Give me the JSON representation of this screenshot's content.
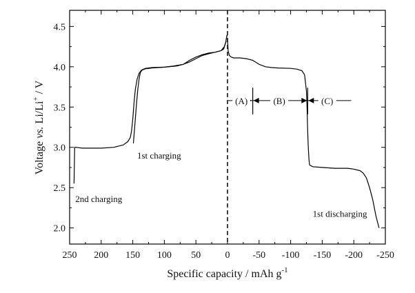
{
  "chart_data": {
    "type": "line",
    "title": "",
    "xlabel": "Specific capacity / mAh g",
    "xlabel_sup": "-1",
    "ylabel_parts": {
      "pre": "Voltage ",
      "vs": "vs.",
      "mid": " Li/Li",
      "sup": "+",
      "post": " / V"
    },
    "xlim": [
      250,
      -250
    ],
    "ylim": [
      1.8,
      4.7
    ],
    "x_ticks": [
      250,
      200,
      150,
      100,
      50,
      0,
      -50,
      -100,
      -150,
      -200,
      -250
    ],
    "x_tick_labels": [
      "250",
      "200",
      "150",
      "100",
      "50",
      "0",
      "-50",
      "-100",
      "-150",
      "-200",
      "-250"
    ],
    "y_ticks": [
      2.0,
      2.5,
      3.0,
      3.5,
      4.0,
      4.5
    ],
    "y_tick_labels": [
      "2.0",
      "2.5",
      "3.0",
      "3.5",
      "4.0",
      "4.5"
    ],
    "grid": false,
    "legend": "none",
    "reference_line_x": 0,
    "series": [
      {
        "name": "1st charging",
        "color": "#000000",
        "x": [
          149,
          148,
          146,
          144,
          142,
          140,
          138,
          135,
          130,
          120,
          100,
          85,
          70,
          60,
          50,
          40,
          30,
          20,
          10,
          6,
          3,
          1,
          0
        ],
        "y": [
          3.05,
          3.15,
          3.35,
          3.55,
          3.72,
          3.85,
          3.93,
          3.96,
          3.975,
          3.985,
          3.995,
          4.01,
          4.03,
          4.08,
          4.12,
          4.15,
          4.17,
          4.18,
          4.2,
          4.22,
          4.3,
          4.39,
          4.38
        ]
      },
      {
        "name": "2nd charging",
        "color": "#000000",
        "x": [
          243,
          242.5,
          242,
          240,
          230,
          220,
          200,
          180,
          165,
          158,
          154,
          152,
          150,
          148,
          146,
          143,
          140,
          136,
          130,
          120,
          100,
          80,
          70,
          60,
          50,
          40,
          30,
          20,
          10,
          5,
          2
        ],
        "y": [
          2.55,
          2.8,
          3.0,
          3.0,
          2.99,
          2.99,
          2.99,
          3.0,
          3.03,
          3.07,
          3.12,
          3.2,
          3.35,
          3.55,
          3.72,
          3.85,
          3.92,
          3.96,
          3.98,
          3.99,
          3.995,
          4.01,
          4.03,
          4.06,
          4.1,
          4.14,
          4.16,
          4.18,
          4.2,
          4.25,
          4.32
        ]
      },
      {
        "name": "1st discharging",
        "color": "#000000",
        "x": [
          0,
          -1,
          -3,
          -6,
          -10,
          -20,
          -30,
          -40,
          -50,
          -60,
          -70,
          -80,
          -100,
          -110,
          -118,
          -122,
          -125,
          -126,
          -127,
          -128,
          -129,
          -130,
          -135,
          -150,
          -170,
          -190,
          -200,
          -205,
          -210,
          -215,
          -220,
          -225,
          -230,
          -235,
          -240
        ],
        "y": [
          4.36,
          4.2,
          4.14,
          4.12,
          4.11,
          4.11,
          4.1,
          4.08,
          4.03,
          4.0,
          3.99,
          3.985,
          3.98,
          3.97,
          3.95,
          3.9,
          3.7,
          3.5,
          3.2,
          3.0,
          2.85,
          2.78,
          2.76,
          2.75,
          2.74,
          2.74,
          2.73,
          2.72,
          2.71,
          2.68,
          2.62,
          2.5,
          2.35,
          2.15,
          2.0
        ]
      }
    ],
    "annotations": [
      {
        "text": "1st charging",
        "x": 143,
        "y": 2.86
      },
      {
        "text": "2nd charging",
        "x": 241,
        "y": 2.32
      },
      {
        "text": "1st discharging",
        "x": -135,
        "y": 2.14
      }
    ],
    "regions": {
      "y": 3.58,
      "line_start_x": -1,
      "line_end_x": -196,
      "markers": [
        {
          "x": -40,
          "height_y": [
            3.41,
            3.74
          ]
        },
        {
          "x": -127,
          "height_y": [
            3.41,
            3.74
          ]
        }
      ],
      "labels": [
        {
          "text": "(A)",
          "x": -22
        },
        {
          "text": "(B)",
          "x": -82
        },
        {
          "text": "(C)",
          "x": -158
        }
      ]
    }
  }
}
